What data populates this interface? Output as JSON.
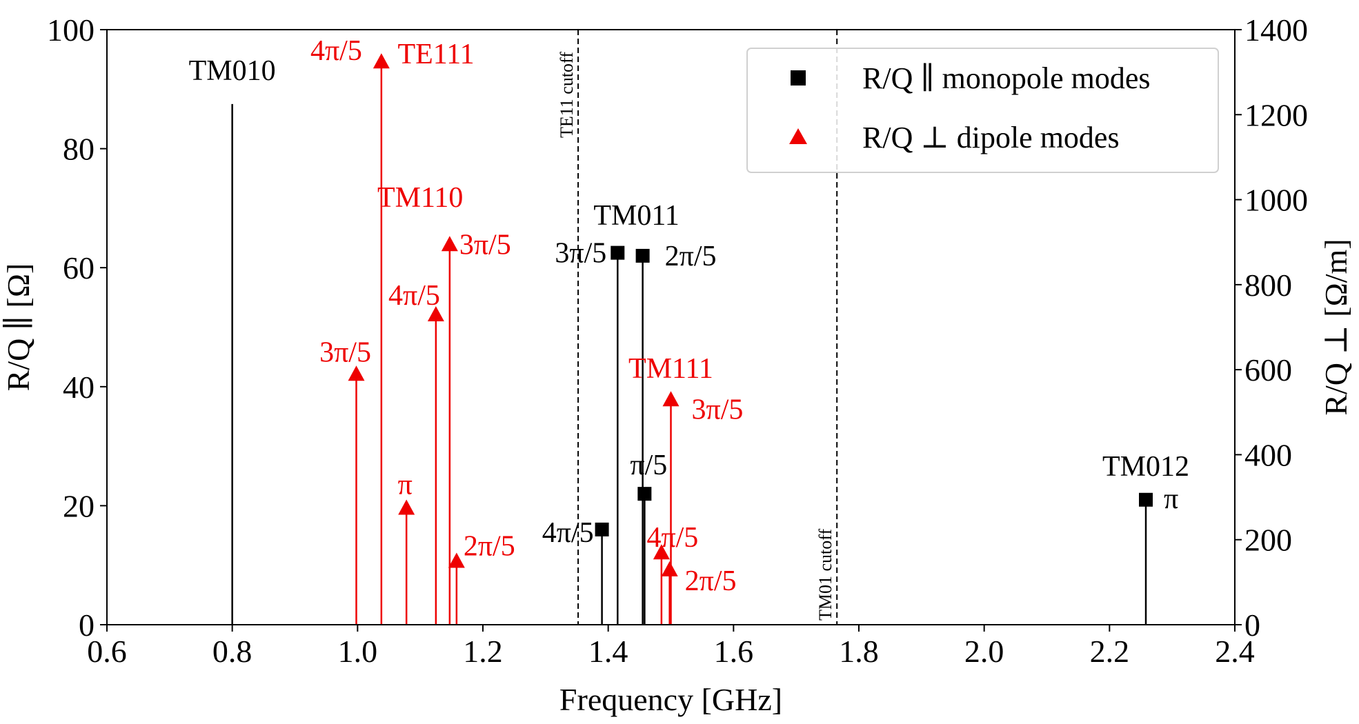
{
  "chart_data": {
    "type": "scatter",
    "title": "",
    "xlabel": "Frequency [GHz]",
    "ylabel_left": "R/Q ∥ [Ω]",
    "ylabel_right": "R/Q ⊥ [Ω/m]",
    "xlim": [
      0.6,
      2.4
    ],
    "ylim_left": [
      0,
      100
    ],
    "ylim_right": [
      0,
      1400
    ],
    "x_ticks": [
      "0.6",
      "0.8",
      "1.0",
      "1.2",
      "1.4",
      "1.6",
      "1.8",
      "2.0",
      "2.2",
      "2.4"
    ],
    "y_left_ticks": [
      "0",
      "20",
      "40",
      "60",
      "80",
      "100"
    ],
    "y_right_ticks": [
      "0",
      "200",
      "400",
      "600",
      "800",
      "1000",
      "1200",
      "1400"
    ],
    "grid": false,
    "legend_position": "top-right",
    "series": [
      {
        "name": "R/Q ∥ monopole modes",
        "marker": "square",
        "color": "#000000",
        "axis": "left",
        "points": [
          {
            "x": 1.39,
            "y": 16,
            "label": "4π/5"
          },
          {
            "x": 1.415,
            "y": 62.5,
            "label": "3π/5"
          },
          {
            "x": 1.455,
            "y": 62,
            "label": "2π/5"
          },
          {
            "x": 1.458,
            "y": 22,
            "label": "π/5"
          },
          {
            "x": 2.258,
            "y": 21,
            "label": "π"
          }
        ]
      },
      {
        "name": "R/Q ⊥ dipole modes",
        "marker": "triangle",
        "color": "#ee0000",
        "axis": "right",
        "points": [
          {
            "x": 0.998,
            "y": 590,
            "label": "3π/5"
          },
          {
            "x": 1.038,
            "y": 1325,
            "label": "4π/5"
          },
          {
            "x": 1.078,
            "y": 275,
            "label": "π"
          },
          {
            "x": 1.125,
            "y": 730,
            "label": "4π/5"
          },
          {
            "x": 1.147,
            "y": 895,
            "label": "3π/5"
          },
          {
            "x": 1.158,
            "y": 150,
            "label": "2π/5"
          },
          {
            "x": 1.485,
            "y": 170,
            "label": "4π/5"
          },
          {
            "x": 1.498,
            "y": 130,
            "label": "2π/5"
          },
          {
            "x": 1.5,
            "y": 530,
            "label": "3π/5"
          }
        ]
      }
    ],
    "stems": [
      {
        "x": 0.8,
        "y": 87.5,
        "axis": "left",
        "color": "#000000",
        "label": "TM010"
      }
    ],
    "mode_labels": [
      {
        "text": "TM010",
        "color": "#000000"
      },
      {
        "text": "TE111",
        "color": "#ee0000"
      },
      {
        "text": "TM110",
        "color": "#ee0000"
      },
      {
        "text": "TM011",
        "color": "#000000"
      },
      {
        "text": "TM111",
        "color": "#ee0000"
      },
      {
        "text": "TM012",
        "color": "#000000"
      }
    ],
    "cutoffs": [
      {
        "x": 1.352,
        "label": "TE11 cutoff"
      },
      {
        "x": 1.765,
        "label": "TM01 cutoff"
      }
    ]
  }
}
